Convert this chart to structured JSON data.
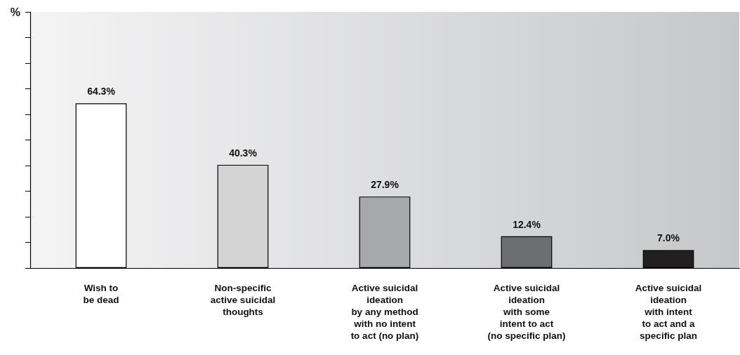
{
  "chart_data": {
    "type": "bar",
    "ylabel": "%",
    "categories": [
      "Wish to\nbe dead",
      "Non-specific\nactive suicidal\nthoughts",
      "Active suicidal\nideation\nby any method\nwith no intent\nto act (no plan)",
      "Active suicidal\nideation\nwith some\nintent to act\n(no specific plan)",
      "Active suicidal\nideation\nwith intent\nto act and a\nspecific plan"
    ],
    "values": [
      64.3,
      40.3,
      27.9,
      12.4,
      7.0
    ],
    "value_labels": [
      "64.3%",
      "40.3%",
      "27.9%",
      "12.4%",
      "7.0%"
    ],
    "colors": [
      "#ffffff",
      "#d4d4d4",
      "#a7a8aa",
      "#6d6e70",
      "#231f20"
    ],
    "ylim": [
      0,
      100
    ],
    "yticks": [
      {
        "value": 0,
        "label": null
      },
      {
        "value": 10,
        "label": null
      },
      {
        "value": 20,
        "label": null
      },
      {
        "value": 30,
        "label": null
      },
      {
        "value": 40,
        "label": null
      },
      {
        "value": 50,
        "label": null
      },
      {
        "value": 60,
        "label": null
      },
      {
        "value": 70,
        "label": null
      },
      {
        "value": 80,
        "label": null
      },
      {
        "value": 90,
        "label": null
      },
      {
        "value": 100,
        "label": null
      }
    ],
    "tick_labels": "x"
  }
}
